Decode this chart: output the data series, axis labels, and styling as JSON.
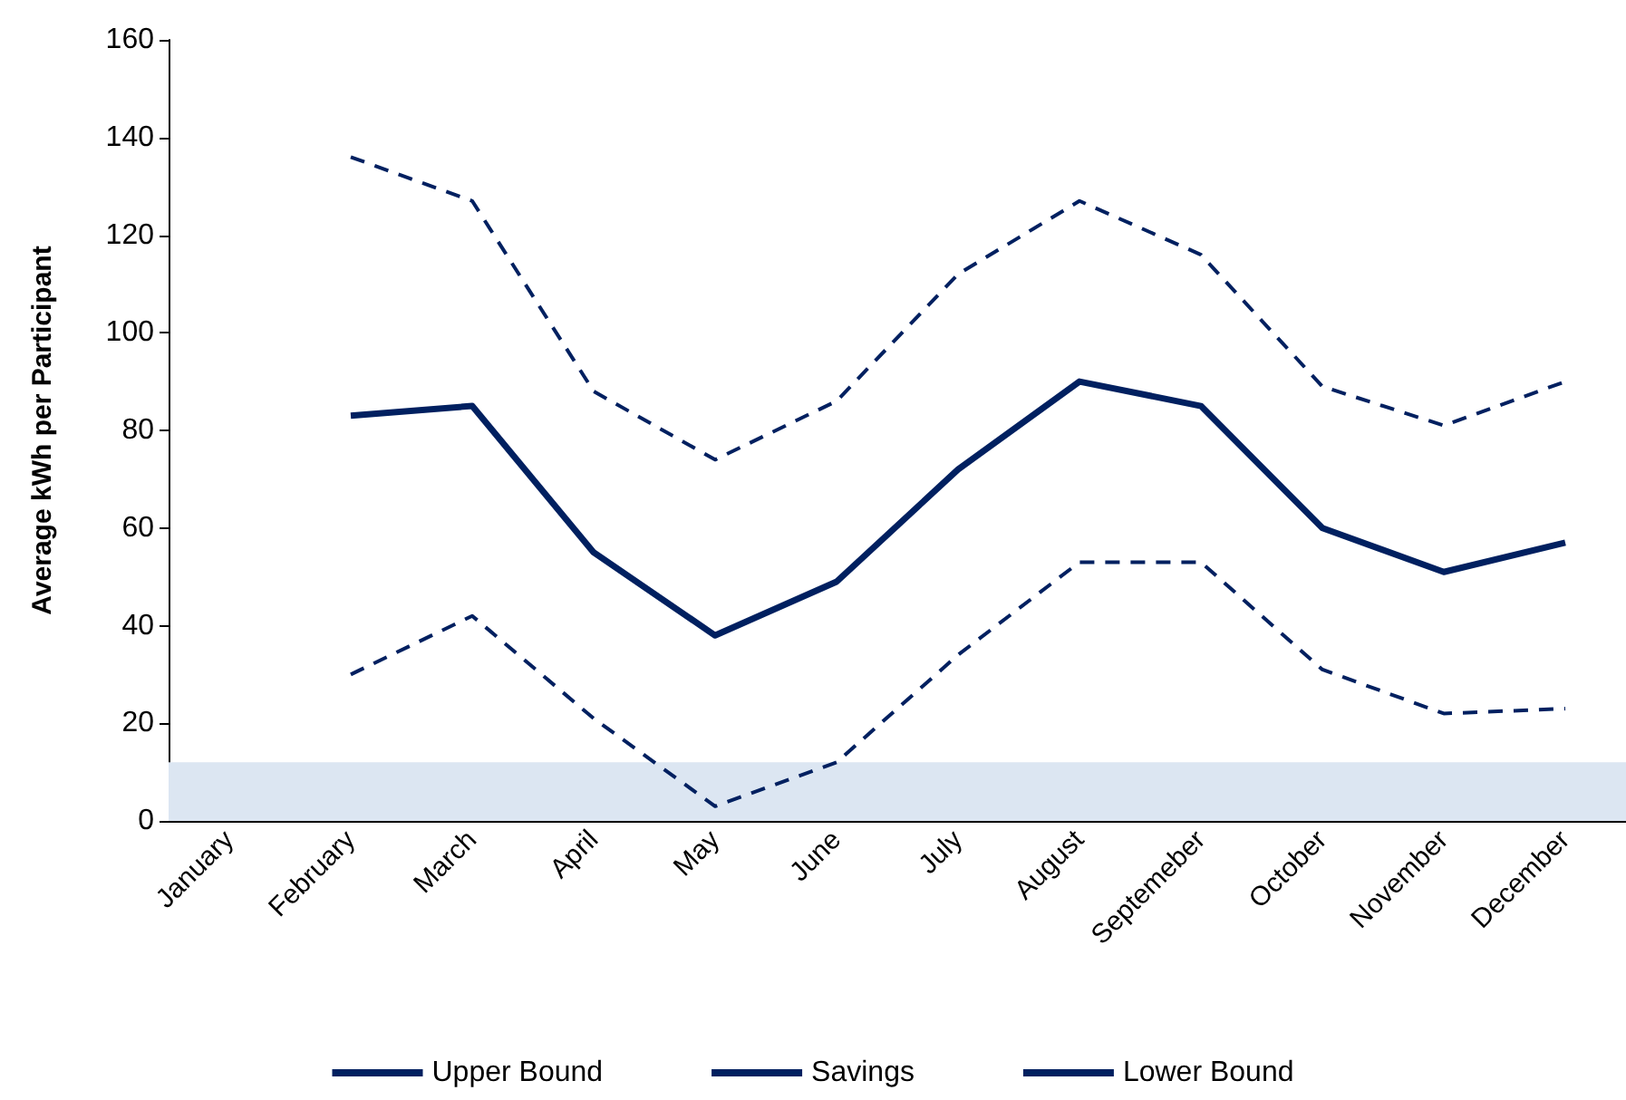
{
  "chart_data": {
    "type": "line",
    "ylabel": "Average kWh per Participant",
    "categories": [
      "January",
      "February",
      "March",
      "April",
      "May",
      "June",
      "July",
      "August",
      "Septemeber",
      "October",
      "November",
      "December"
    ],
    "series": [
      {
        "name": "Upper Bound",
        "color": "#002060",
        "line_style": "dashed",
        "values": [
          null,
          136,
          127,
          88,
          74,
          86,
          112,
          127,
          116,
          89,
          81,
          90
        ]
      },
      {
        "name": "Savings",
        "color": "#002060",
        "line_style": "solid",
        "values": [
          null,
          83,
          85,
          55,
          38,
          49,
          72,
          90,
          85,
          60,
          51,
          57
        ]
      },
      {
        "name": "Lower Bound",
        "color": "#002060",
        "line_style": "dashed",
        "values": [
          null,
          30,
          42,
          21,
          3,
          12,
          34,
          53,
          53,
          31,
          22,
          23
        ]
      }
    ],
    "ylim": [
      0,
      160
    ],
    "yticks": [
      0,
      20,
      40,
      60,
      80,
      100,
      120,
      140,
      160
    ],
    "bands": [
      {
        "axis": "y",
        "from": 0,
        "to": 12,
        "color": "#dce6f2"
      }
    ],
    "grid": false,
    "legend": "bottom",
    "marker": "none"
  }
}
